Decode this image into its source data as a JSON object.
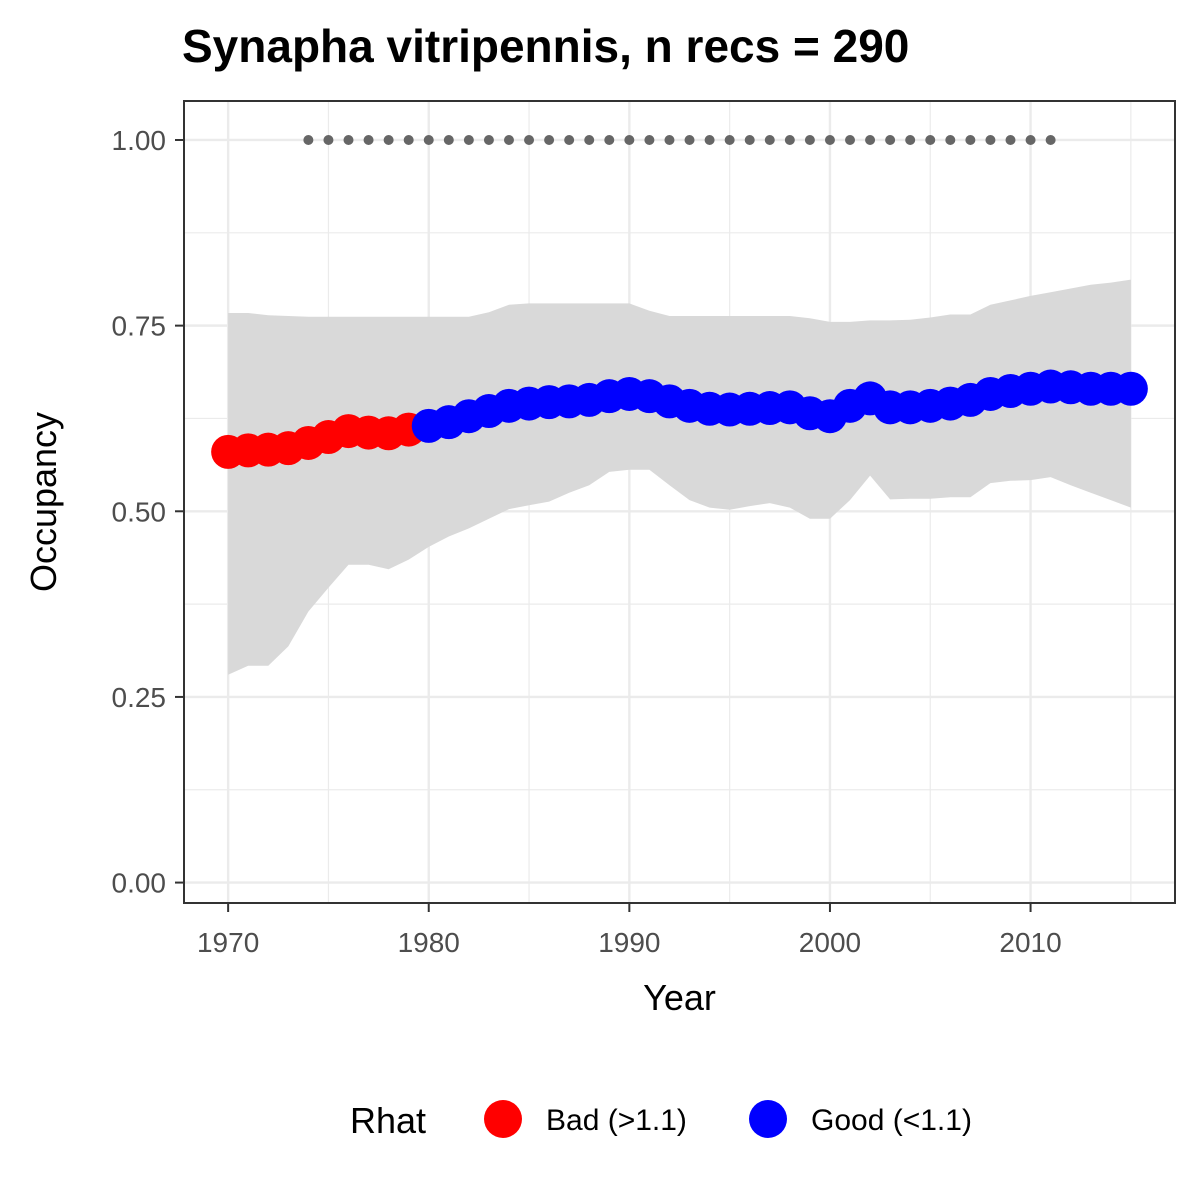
{
  "chart_data": {
    "type": "line",
    "title": "Synapha vitripennis, n recs = 290",
    "xlabel": "Year",
    "ylabel": "Occupancy",
    "xlim": [
      1967.8,
      2017.2
    ],
    "ylim": [
      -0.0275,
      1.0525
    ],
    "x_ticks": [
      1970,
      1980,
      1990,
      2000,
      2010
    ],
    "x_tick_labels": [
      "1970",
      "1980",
      "1990",
      "2000",
      "2010"
    ],
    "y_ticks": [
      0,
      0.25,
      0.5,
      0.75,
      1.0
    ],
    "y_tick_labels": [
      "0.00",
      "0.25",
      "0.50",
      "0.75",
      "1.00"
    ],
    "grid": true,
    "legend": {
      "title": "Rhat",
      "position": "bottom",
      "entries": [
        {
          "label": "Bad (>1.1)",
          "color": "#ff0000"
        },
        {
          "label": "Good (<1.1)",
          "color": "#0000ff"
        }
      ]
    },
    "colors": {
      "bad": "#ff0000",
      "good": "#0000ff",
      "ribbon": "#d9d9d9",
      "records": "#666666"
    },
    "series": [
      {
        "x": [
          1970,
          1971,
          1972,
          1973,
          1974,
          1975,
          1976,
          1977,
          1978,
          1979,
          1980,
          1981,
          1982,
          1983,
          1984,
          1985,
          1986,
          1987,
          1988,
          1989,
          1990,
          1991,
          1992,
          1993,
          1994,
          1995,
          1996,
          1997,
          1998,
          1999,
          2000,
          2001,
          2002,
          2003,
          2004,
          2005,
          2006,
          2007,
          2008,
          2009,
          2010,
          2011,
          2012,
          2013,
          2014,
          2015
        ],
        "values": [
          0.58,
          0.582,
          0.583,
          0.585,
          0.592,
          0.6,
          0.608,
          0.606,
          0.605,
          0.61,
          0.615,
          0.62,
          0.628,
          0.635,
          0.642,
          0.645,
          0.647,
          0.648,
          0.65,
          0.655,
          0.658,
          0.655,
          0.648,
          0.642,
          0.638,
          0.637,
          0.638,
          0.639,
          0.64,
          0.632,
          0.628,
          0.642,
          0.652,
          0.64,
          0.64,
          0.642,
          0.645,
          0.65,
          0.658,
          0.662,
          0.665,
          0.668,
          0.667,
          0.665,
          0.665,
          0.665
        ],
        "rhat_status": [
          "bad",
          "bad",
          "bad",
          "bad",
          "bad",
          "bad",
          "bad",
          "bad",
          "bad",
          "bad",
          "good",
          "good",
          "good",
          "good",
          "good",
          "good",
          "good",
          "good",
          "good",
          "good",
          "good",
          "good",
          "good",
          "good",
          "good",
          "good",
          "good",
          "good",
          "good",
          "good",
          "good",
          "good",
          "good",
          "good",
          "good",
          "good",
          "good",
          "good",
          "good",
          "good",
          "good",
          "good",
          "good",
          "good",
          "good",
          "good"
        ],
        "lower": [
          0.28,
          0.292,
          0.292,
          0.318,
          0.365,
          0.397,
          0.428,
          0.428,
          0.422,
          0.435,
          0.452,
          0.466,
          0.477,
          0.49,
          0.503,
          0.508,
          0.513,
          0.525,
          0.535,
          0.553,
          0.556,
          0.556,
          0.535,
          0.515,
          0.505,
          0.502,
          0.507,
          0.511,
          0.505,
          0.49,
          0.49,
          0.515,
          0.548,
          0.516,
          0.517,
          0.517,
          0.519,
          0.519,
          0.538,
          0.541,
          0.542,
          0.546,
          0.535,
          0.525,
          0.515,
          0.505
        ],
        "upper": [
          0.767,
          0.767,
          0.764,
          0.763,
          0.762,
          0.762,
          0.762,
          0.762,
          0.762,
          0.762,
          0.762,
          0.762,
          0.762,
          0.768,
          0.778,
          0.78,
          0.78,
          0.78,
          0.78,
          0.78,
          0.78,
          0.77,
          0.763,
          0.763,
          0.763,
          0.763,
          0.763,
          0.763,
          0.763,
          0.76,
          0.755,
          0.755,
          0.757,
          0.757,
          0.758,
          0.761,
          0.765,
          0.765,
          0.778,
          0.784,
          0.79,
          0.795,
          0.8,
          0.805,
          0.808,
          0.812
        ]
      }
    ],
    "record_years": [
      1974,
      1975,
      1976,
      1977,
      1978,
      1979,
      1980,
      1981,
      1982,
      1983,
      1984,
      1985,
      1986,
      1987,
      1988,
      1989,
      1990,
      1991,
      1992,
      1993,
      1994,
      1995,
      1996,
      1997,
      1998,
      1999,
      2000,
      2001,
      2002,
      2003,
      2004,
      2005,
      2006,
      2007,
      2008,
      2009,
      2010,
      2011
    ],
    "record_y": 1.0
  }
}
